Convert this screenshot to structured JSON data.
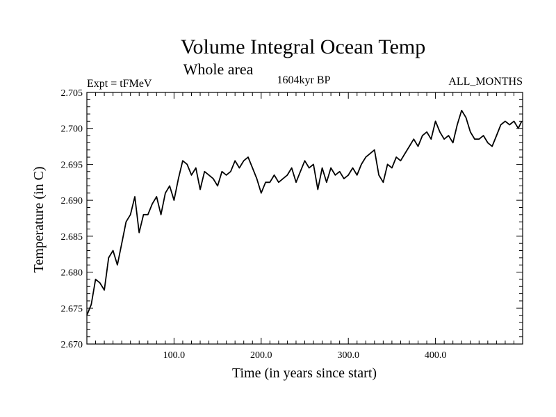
{
  "chart_data": {
    "type": "line",
    "title": "Volume Integral Ocean Temp",
    "subtitle": "Whole area",
    "experiment_label": "Expt = tFMeV",
    "period_label": "1604kyr BP",
    "months_label": "ALL_MONTHS",
    "xlabel": "Time (in years since start)",
    "ylabel": "Temperature (in C)",
    "xlim": [
      0,
      500
    ],
    "ylim": [
      2.67,
      2.705
    ],
    "x_ticks": [
      100,
      200,
      300,
      400
    ],
    "x_tick_labels": [
      "100.0",
      "200.0",
      "300.0",
      "400.0"
    ],
    "y_ticks": [
      2.67,
      2.675,
      2.68,
      2.685,
      2.69,
      2.695,
      2.7,
      2.705
    ],
    "y_tick_labels": [
      "2.670",
      "2.675",
      "2.680",
      "2.685",
      "2.690",
      "2.695",
      "2.700",
      "2.705"
    ],
    "series": [
      {
        "name": "Volume Integral Ocean Temp",
        "color": "#000000",
        "x": [
          0,
          5,
          10,
          15,
          20,
          25,
          30,
          35,
          40,
          45,
          50,
          55,
          60,
          65,
          70,
          75,
          80,
          85,
          90,
          95,
          100,
          105,
          110,
          115,
          120,
          125,
          130,
          135,
          140,
          145,
          150,
          155,
          160,
          165,
          170,
          175,
          180,
          185,
          190,
          195,
          200,
          205,
          210,
          215,
          220,
          225,
          230,
          235,
          240,
          245,
          250,
          255,
          260,
          265,
          270,
          275,
          280,
          285,
          290,
          295,
          300,
          305,
          310,
          315,
          320,
          325,
          330,
          335,
          340,
          345,
          350,
          355,
          360,
          365,
          370,
          375,
          380,
          385,
          390,
          395,
          400,
          405,
          410,
          415,
          420,
          425,
          430,
          435,
          440,
          445,
          450,
          455,
          460,
          465,
          470,
          475,
          480,
          485,
          490,
          495,
          499
        ],
        "values": [
          2.674,
          2.6755,
          2.679,
          2.6785,
          2.6775,
          2.682,
          2.683,
          2.681,
          2.684,
          2.687,
          2.688,
          2.6905,
          2.6855,
          2.688,
          2.688,
          2.6895,
          2.6905,
          2.688,
          2.691,
          2.692,
          2.69,
          2.693,
          2.6955,
          2.695,
          2.6935,
          2.6945,
          2.6915,
          2.694,
          2.6935,
          2.693,
          2.692,
          2.694,
          2.6935,
          2.694,
          2.6955,
          2.6945,
          2.6955,
          2.696,
          2.6945,
          2.693,
          2.691,
          2.6925,
          2.6925,
          2.6935,
          2.6925,
          2.693,
          2.6935,
          2.6945,
          2.6925,
          2.694,
          2.6955,
          2.6945,
          2.695,
          2.6915,
          2.6945,
          2.6925,
          2.6945,
          2.6935,
          2.694,
          2.693,
          2.6935,
          2.6945,
          2.6935,
          2.695,
          2.696,
          2.6965,
          2.697,
          2.6935,
          2.6925,
          2.695,
          2.6945,
          2.696,
          2.6955,
          2.6965,
          2.6975,
          2.6985,
          2.6975,
          2.699,
          2.6995,
          2.6985,
          2.701,
          2.6995,
          2.6985,
          2.699,
          2.698,
          2.7005,
          2.7025,
          2.7015,
          2.6995,
          2.6985,
          2.6985,
          2.699,
          2.698,
          2.6975,
          2.699,
          2.7005,
          2.701,
          2.7005,
          2.701,
          2.7,
          2.701
        ]
      }
    ]
  }
}
